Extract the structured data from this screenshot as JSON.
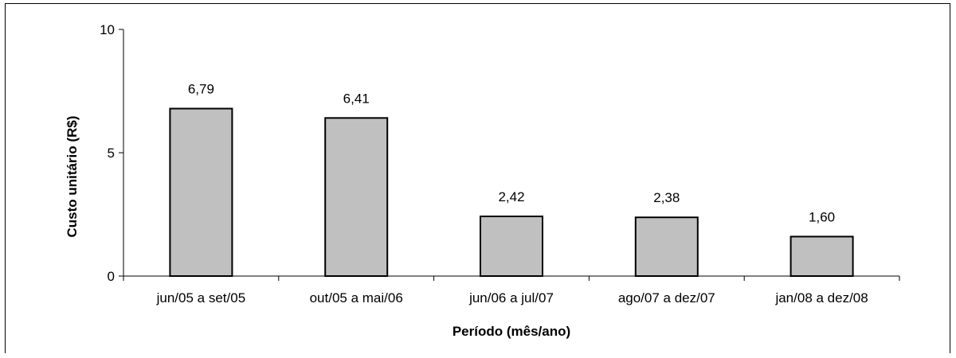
{
  "chart_data": {
    "type": "bar",
    "categories": [
      "jun/05 a set/05",
      "out/05 a mai/06",
      "jun/06 a jul/07",
      "ago/07 a dez/07",
      "jan/08 a dez/08"
    ],
    "values": [
      6.79,
      6.41,
      2.42,
      2.38,
      1.6
    ],
    "value_labels": [
      "6,79",
      "6,41",
      "2,42",
      "2,38",
      "1,60"
    ],
    "title": "",
    "xlabel": "Período (mês/ano)",
    "ylabel": "Custo unitário (R$)",
    "ylim": [
      0,
      10
    ],
    "yticks": [
      0,
      5,
      10
    ],
    "ytick_labels": [
      "0",
      "5",
      "10"
    ],
    "grid": false,
    "legend": "none",
    "bar_color": "#c0c0c0",
    "edge_color": "#000000"
  }
}
